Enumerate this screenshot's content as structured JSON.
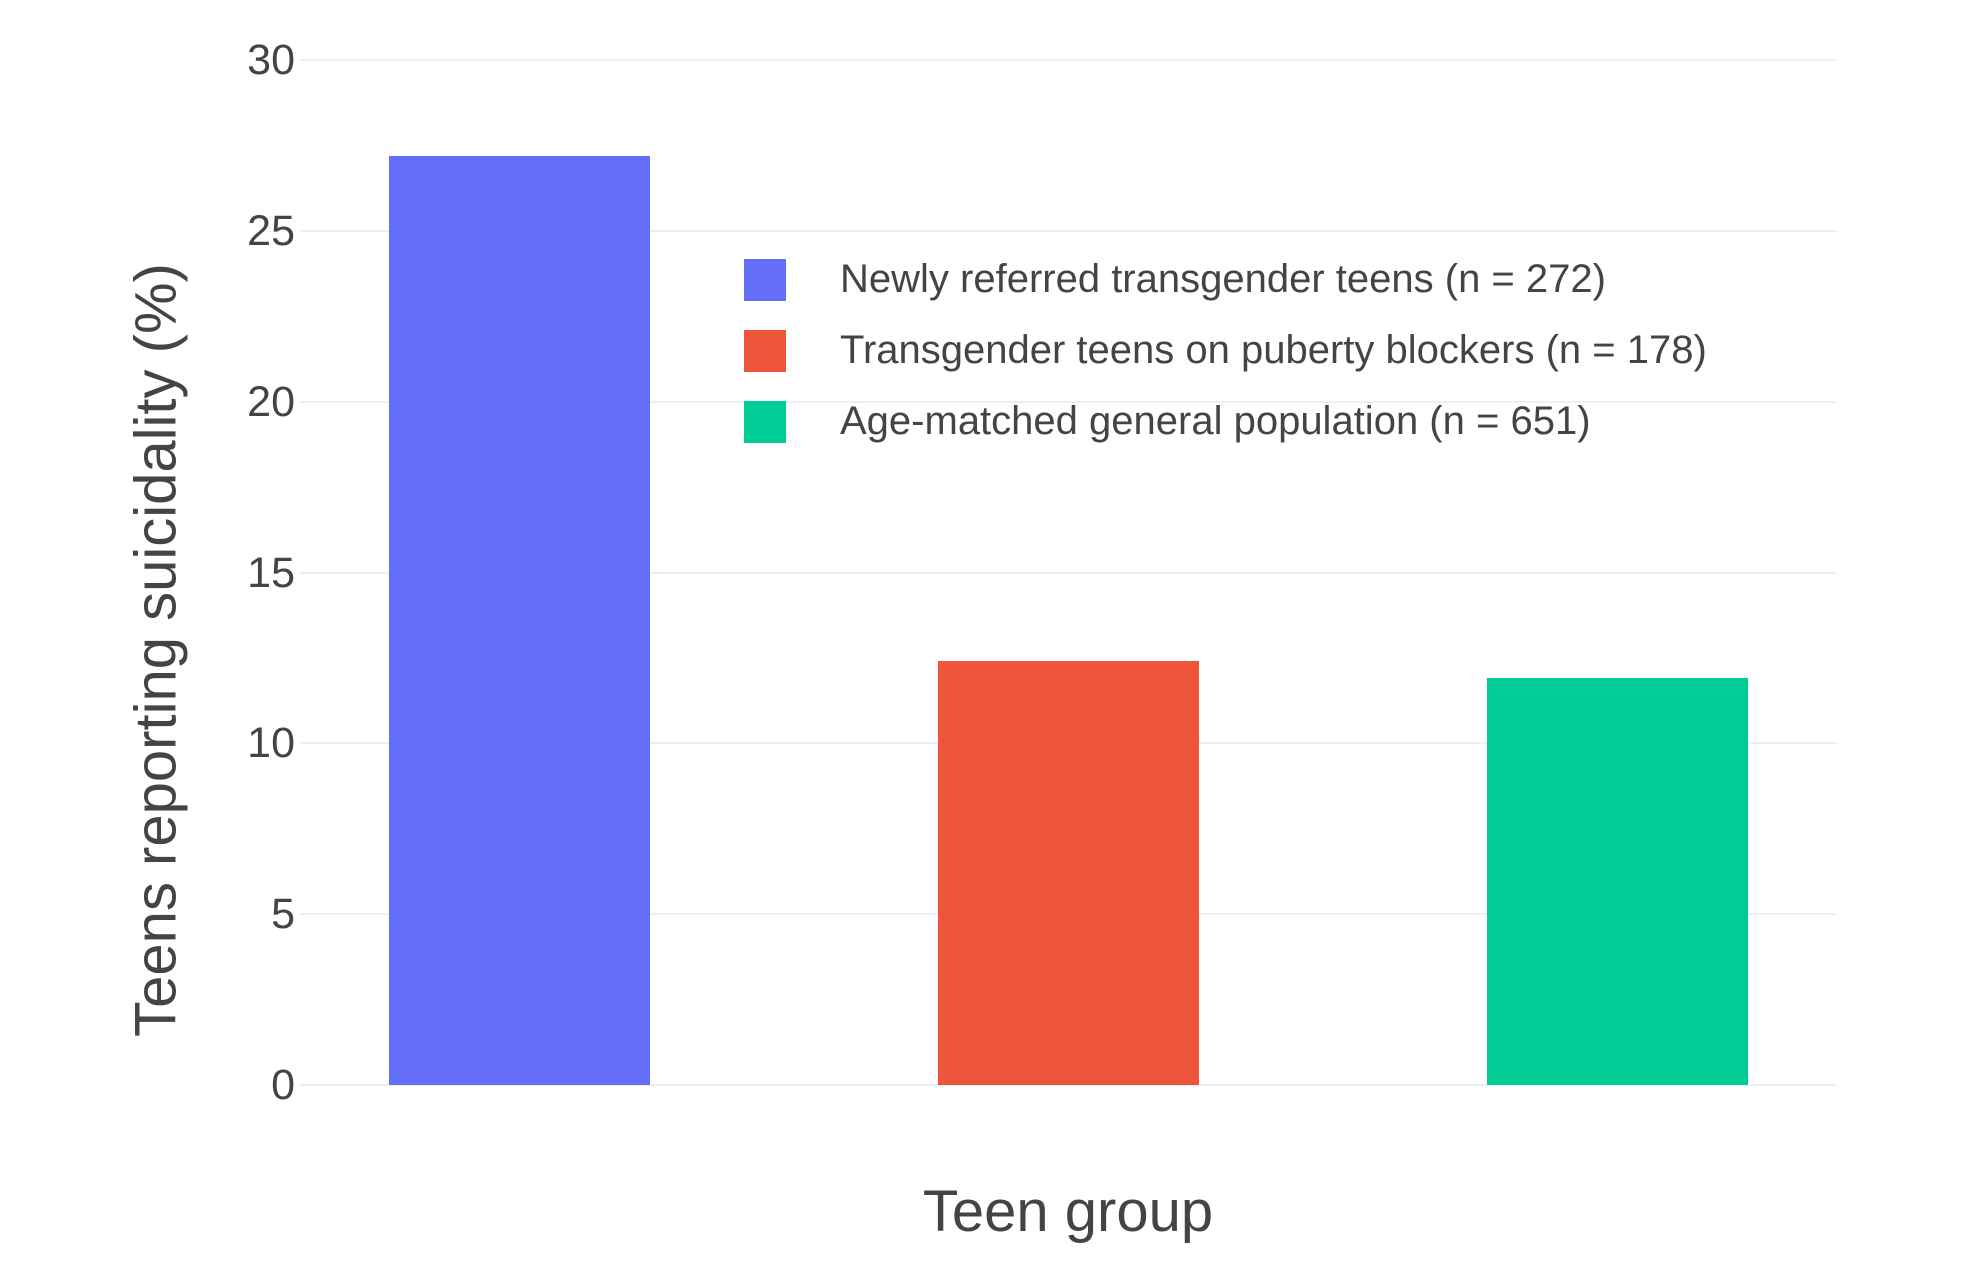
{
  "chart_data": {
    "type": "bar",
    "title": "",
    "xlabel": "Teen group",
    "ylabel": "Teens reporting suicidality (%)",
    "categories": [
      "Newly referred transgender teens (n = 272)",
      "Transgender teens on puberty blockers (n = 178)",
      "Age-matched general population (n = 651)"
    ],
    "values": [
      27.2,
      12.4,
      11.9
    ],
    "bar_colors": [
      "#636EFA",
      "#EF553B",
      "#00CC96"
    ],
    "ylim": [
      0,
      30
    ],
    "yticks": [
      0,
      5,
      10,
      15,
      20,
      25,
      30
    ],
    "grid": true,
    "gridline_color": "#EBF0F8",
    "text_color": "#444444",
    "background_color": "#FFFFFF",
    "legend_position": "inside-upper-right",
    "legend": [
      {
        "label": "Newly referred transgender teens (n = 272)",
        "color": "#636EFA"
      },
      {
        "label": "Transgender teens on puberty blockers (n = 178)",
        "color": "#EF553B"
      },
      {
        "label": "Age-matched general population (n = 651)",
        "color": "#00CC96"
      }
    ]
  }
}
